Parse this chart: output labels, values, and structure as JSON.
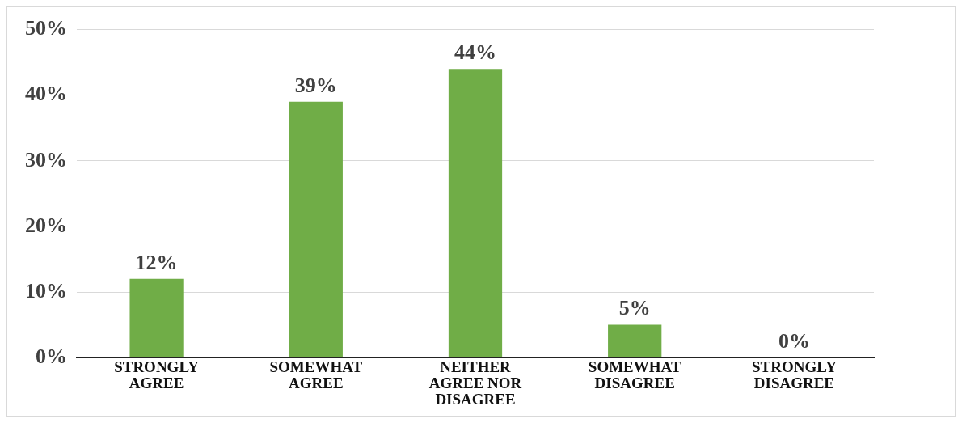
{
  "chart_data": {
    "type": "bar",
    "categories": [
      "STRONGLY AGREE",
      "SOMEWHAT AGREE",
      "NEITHER AGREE NOR DISAGREE",
      "SOMEWHAT DISAGREE",
      "STRONGLY DISAGREE"
    ],
    "values": [
      12,
      39,
      44,
      5,
      0
    ],
    "color": "#70ad47",
    "ylim": [
      0,
      50
    ],
    "yticks": [
      {
        "value": 0,
        "label": "0%"
      },
      {
        "value": 10,
        "label": "10%"
      },
      {
        "value": 20,
        "label": "20%"
      },
      {
        "value": 30,
        "label": "30%"
      },
      {
        "value": 40,
        "label": "40%"
      },
      {
        "value": 50,
        "label": "50%"
      }
    ],
    "value_labels": [
      "12%",
      "39%",
      "44%",
      "5%",
      "0%"
    ],
    "grid": "y",
    "legend": false
  }
}
